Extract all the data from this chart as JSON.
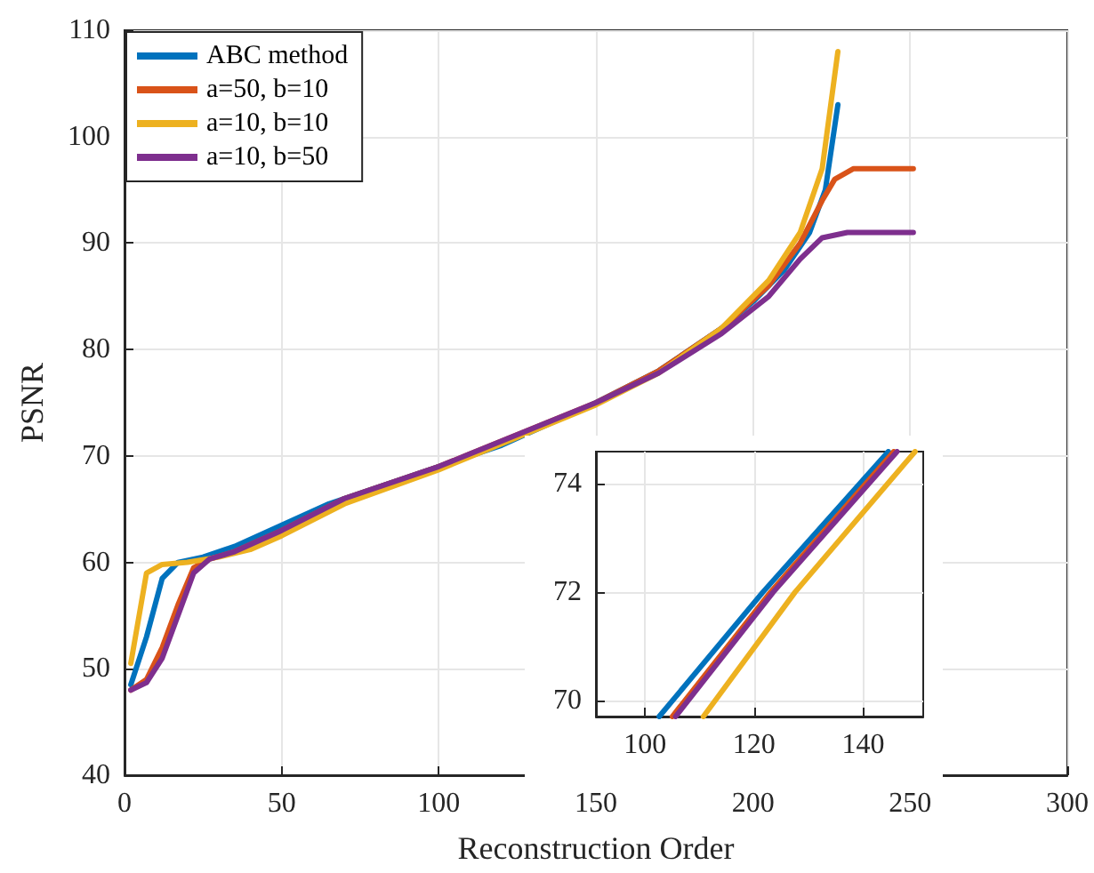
{
  "chart_data": [
    {
      "type": "line",
      "xlabel": "Reconstruction Order",
      "ylabel": "PSNR",
      "xlim": [
        0,
        300
      ],
      "xticks": [
        0,
        50,
        100,
        150,
        200,
        250,
        300
      ],
      "ylim": [
        40,
        110
      ],
      "yticks": [
        40,
        50,
        60,
        70,
        80,
        90,
        100,
        110
      ],
      "grid": true,
      "legend": "top left",
      "marker": "none",
      "line_style": "solid",
      "series": [
        {
          "name": "ABC method",
          "color": "#0072bd",
          "x": [
            2,
            7,
            12,
            17,
            25,
            35,
            50,
            65,
            80,
            100,
            120,
            150,
            170,
            190,
            200,
            210,
            218,
            223,
            227
          ],
          "values": [
            48.5,
            53,
            58.5,
            60,
            60.5,
            61.5,
            63.5,
            65.5,
            67,
            69,
            71,
            75,
            78,
            82,
            84.5,
            87.5,
            91,
            95,
            103
          ]
        },
        {
          "name": "a=50, b=10",
          "color": "#d95319",
          "x": [
            2,
            7,
            12,
            17,
            22,
            27,
            35,
            50,
            70,
            100,
            150,
            170,
            190,
            205,
            215,
            222,
            226,
            232,
            240,
            251
          ],
          "values": [
            48,
            49,
            52,
            56,
            59.5,
            60.3,
            61,
            63,
            66,
            69,
            75,
            78,
            82,
            86,
            90,
            94,
            96,
            97,
            97,
            97
          ]
        },
        {
          "name": "a=10, b=10",
          "color": "#edb120",
          "x": [
            2,
            7,
            12,
            20,
            30,
            40,
            50,
            70,
            100,
            150,
            170,
            190,
            205,
            215,
            222,
            227
          ],
          "values": [
            50.5,
            59,
            59.8,
            60,
            60.5,
            61.2,
            62.5,
            65.5,
            68.7,
            74.8,
            77.8,
            82,
            86.5,
            91,
            97,
            108
          ]
        },
        {
          "name": "a=10, b=50",
          "color": "#7e2f8e",
          "x": [
            2,
            7,
            12,
            17,
            22,
            27,
            35,
            50,
            70,
            100,
            150,
            170,
            190,
            205,
            215,
            222,
            230,
            240,
            251
          ],
          "values": [
            48,
            48.7,
            51,
            55,
            59,
            60.3,
            61,
            63,
            66,
            69,
            75,
            77.8,
            81.5,
            85,
            88.5,
            90.5,
            91,
            91,
            91
          ]
        }
      ]
    },
    {
      "type": "line",
      "xlim": [
        91,
        151
      ],
      "xticks": [
        100,
        120,
        140
      ],
      "ylim": [
        69.7,
        74.6
      ],
      "yticks": [
        70,
        72,
        74
      ],
      "grid": true,
      "marker": "none",
      "line_style": "solid",
      "series": [
        {
          "color": "#0072bd",
          "x": [
            102.6,
            121.6,
            144.6
          ],
          "values": [
            69.7,
            72,
            74.6
          ]
        },
        {
          "color": "#d95319",
          "x": [
            105,
            123,
            145.6
          ],
          "values": [
            69.7,
            72,
            74.6
          ]
        },
        {
          "color": "#edb120",
          "x": [
            110.7,
            127.5,
            149.5
          ],
          "values": [
            69.7,
            72,
            74.6
          ]
        },
        {
          "color": "#7e2f8e",
          "x": [
            105.6,
            123.5,
            146.2
          ],
          "values": [
            69.7,
            72,
            74.6
          ]
        }
      ]
    }
  ]
}
